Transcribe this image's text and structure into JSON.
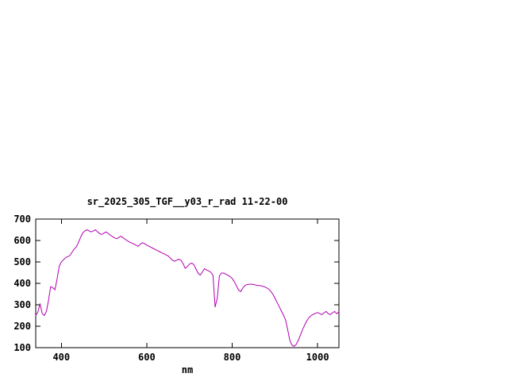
{
  "chart_data": {
    "type": "line",
    "title": "sr_2025_305_TGF__y03_r_rad 11-22-00",
    "xlabel": "nm",
    "ylabel": "",
    "xlim": [
      340,
      1050
    ],
    "ylim": [
      100,
      700
    ],
    "xticks": [
      400,
      600,
      800,
      1000
    ],
    "yticks": [
      100,
      200,
      300,
      400,
      500,
      600,
      700
    ],
    "grid": false,
    "legend_position": "none",
    "line_color": "#b000b0",
    "frame_color": "#000000",
    "background_color": "#ffffff",
    "x": [
      340,
      345,
      350,
      355,
      360,
      365,
      370,
      375,
      380,
      385,
      390,
      395,
      400,
      405,
      410,
      415,
      420,
      425,
      430,
      435,
      440,
      445,
      450,
      455,
      460,
      465,
      470,
      475,
      480,
      485,
      490,
      495,
      500,
      505,
      510,
      515,
      520,
      525,
      530,
      535,
      540,
      545,
      550,
      555,
      560,
      565,
      570,
      575,
      580,
      585,
      590,
      595,
      600,
      605,
      610,
      615,
      620,
      625,
      630,
      635,
      640,
      645,
      650,
      655,
      660,
      665,
      670,
      675,
      680,
      685,
      690,
      695,
      700,
      705,
      710,
      715,
      720,
      725,
      730,
      735,
      740,
      745,
      750,
      755,
      760,
      765,
      770,
      775,
      780,
      785,
      790,
      795,
      800,
      805,
      810,
      815,
      820,
      825,
      830,
      835,
      840,
      845,
      850,
      855,
      860,
      865,
      870,
      875,
      880,
      885,
      890,
      895,
      900,
      905,
      910,
      915,
      920,
      925,
      930,
      935,
      940,
      945,
      950,
      955,
      960,
      965,
      970,
      975,
      980,
      985,
      990,
      995,
      1000,
      1005,
      1010,
      1015,
      1020,
      1025,
      1030,
      1035,
      1040,
      1045,
      1050
    ],
    "y": [
      250,
      265,
      305,
      260,
      250,
      270,
      320,
      385,
      380,
      370,
      420,
      480,
      500,
      510,
      520,
      525,
      530,
      545,
      560,
      570,
      590,
      615,
      635,
      645,
      650,
      645,
      640,
      645,
      650,
      640,
      632,
      628,
      635,
      640,
      632,
      625,
      618,
      612,
      608,
      615,
      620,
      612,
      605,
      598,
      592,
      588,
      583,
      578,
      573,
      583,
      590,
      585,
      578,
      573,
      568,
      563,
      558,
      553,
      548,
      543,
      538,
      533,
      528,
      518,
      508,
      503,
      508,
      513,
      508,
      493,
      470,
      478,
      490,
      495,
      488,
      468,
      448,
      438,
      452,
      468,
      463,
      458,
      452,
      438,
      290,
      330,
      435,
      448,
      448,
      443,
      438,
      432,
      423,
      408,
      388,
      368,
      362,
      378,
      390,
      395,
      396,
      396,
      395,
      392,
      390,
      390,
      387,
      385,
      380,
      374,
      364,
      350,
      332,
      312,
      292,
      272,
      252,
      230,
      185,
      135,
      112,
      106,
      115,
      135,
      160,
      185,
      207,
      226,
      240,
      250,
      256,
      260,
      264,
      259,
      254,
      263,
      269,
      259,
      254,
      263,
      269,
      258,
      268
    ]
  }
}
